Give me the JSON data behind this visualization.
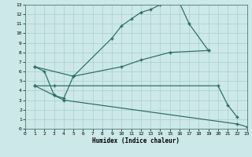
{
  "xlabel": "Humidex (Indice chaleur)",
  "bg_color": "#cce8e8",
  "grid_color": "#aacece",
  "line_color": "#2a6b60",
  "xlim": [
    -0.5,
    23.5
  ],
  "ylim": [
    0,
    13
  ],
  "line1_main": {
    "x": [
      1,
      2,
      3,
      4,
      5,
      9,
      10,
      11,
      12,
      13,
      14,
      15,
      16,
      17,
      19
    ],
    "y": [
      6.5,
      6.0,
      3.5,
      3.2,
      5.5,
      9.5,
      10.8,
      11.5,
      12.2,
      12.5,
      13.0,
      13.2,
      13.2,
      11.0,
      8.2
    ]
  },
  "line2_upper": {
    "x": [
      1,
      5,
      10,
      12,
      15,
      19
    ],
    "y": [
      6.5,
      5.5,
      6.5,
      7.2,
      8.0,
      8.2
    ]
  },
  "line3_mid": {
    "x": [
      1,
      3,
      4,
      20,
      21,
      22
    ],
    "y": [
      4.5,
      4.5,
      4.5,
      4.5,
      2.5,
      1.2
    ]
  },
  "line4_low": {
    "x": [
      1,
      3,
      4,
      22,
      23
    ],
    "y": [
      4.5,
      3.5,
      3.0,
      0.5,
      0.2
    ]
  }
}
